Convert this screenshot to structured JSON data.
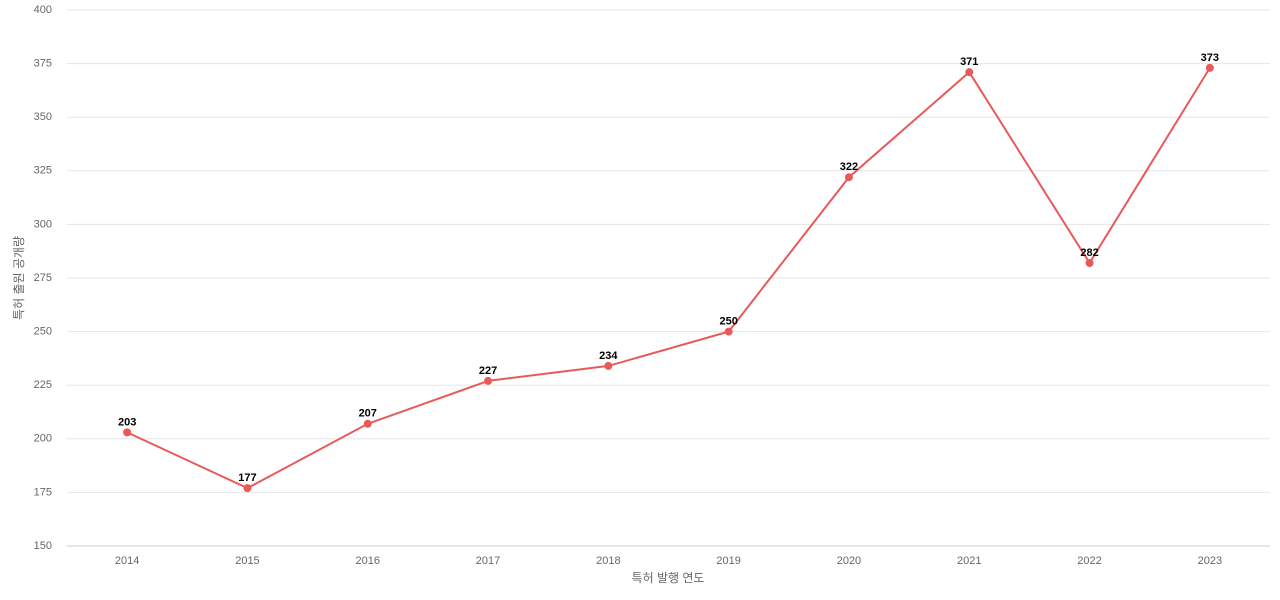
{
  "chart_data": {
    "type": "line",
    "xlabel": "특허 발행 연도",
    "ylabel": "특허 출원 공개량",
    "categories": [
      "2014",
      "2015",
      "2016",
      "2017",
      "2018",
      "2019",
      "2020",
      "2021",
      "2022",
      "2023"
    ],
    "values": [
      203,
      177,
      207,
      227,
      234,
      250,
      322,
      371,
      282,
      373
    ],
    "color": "#e85a5a",
    "ylim": [
      150,
      400
    ],
    "yticks": [
      150,
      175,
      200,
      225,
      250,
      275,
      300,
      325,
      350,
      375,
      400
    ],
    "grid": true
  }
}
